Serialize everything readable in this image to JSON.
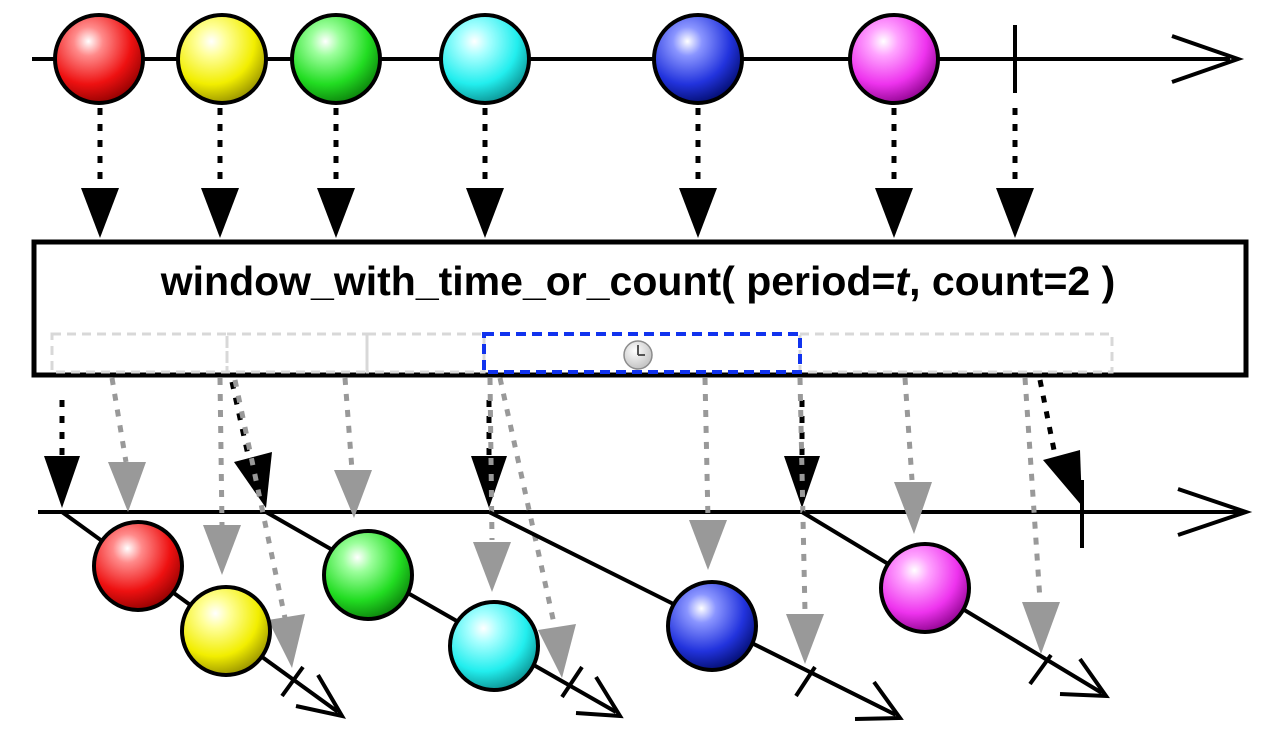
{
  "operator": {
    "name": "window_with_time_or_count(",
    "arg1_name": " period=",
    "arg1_value": "t",
    "arg2": ", count=2 )"
  },
  "source_stream": {
    "items": [
      {
        "color": "red"
      },
      {
        "color": "yellow"
      },
      {
        "color": "green"
      },
      {
        "color": "cyan"
      },
      {
        "color": "blue"
      },
      {
        "color": "magenta"
      }
    ],
    "completed": true
  },
  "windows": [
    {
      "items": [
        "red",
        "yellow"
      ],
      "closed_by": "count"
    },
    {
      "items": [
        "green",
        "cyan"
      ],
      "closed_by": "count"
    },
    {
      "items": [
        "blue"
      ],
      "closed_by": "time"
    },
    {
      "items": [
        "magenta"
      ],
      "closed_by": "completion"
    }
  ],
  "timer_icon": "clock-icon",
  "colors": {
    "red": "#ee1111",
    "yellow": "#f2ee00",
    "green": "#22dd22",
    "cyan": "#22eeee",
    "blue": "#2233dd",
    "magenta": "#ee33ee",
    "timer_box": "#1133ee",
    "ghost": "#999999"
  }
}
